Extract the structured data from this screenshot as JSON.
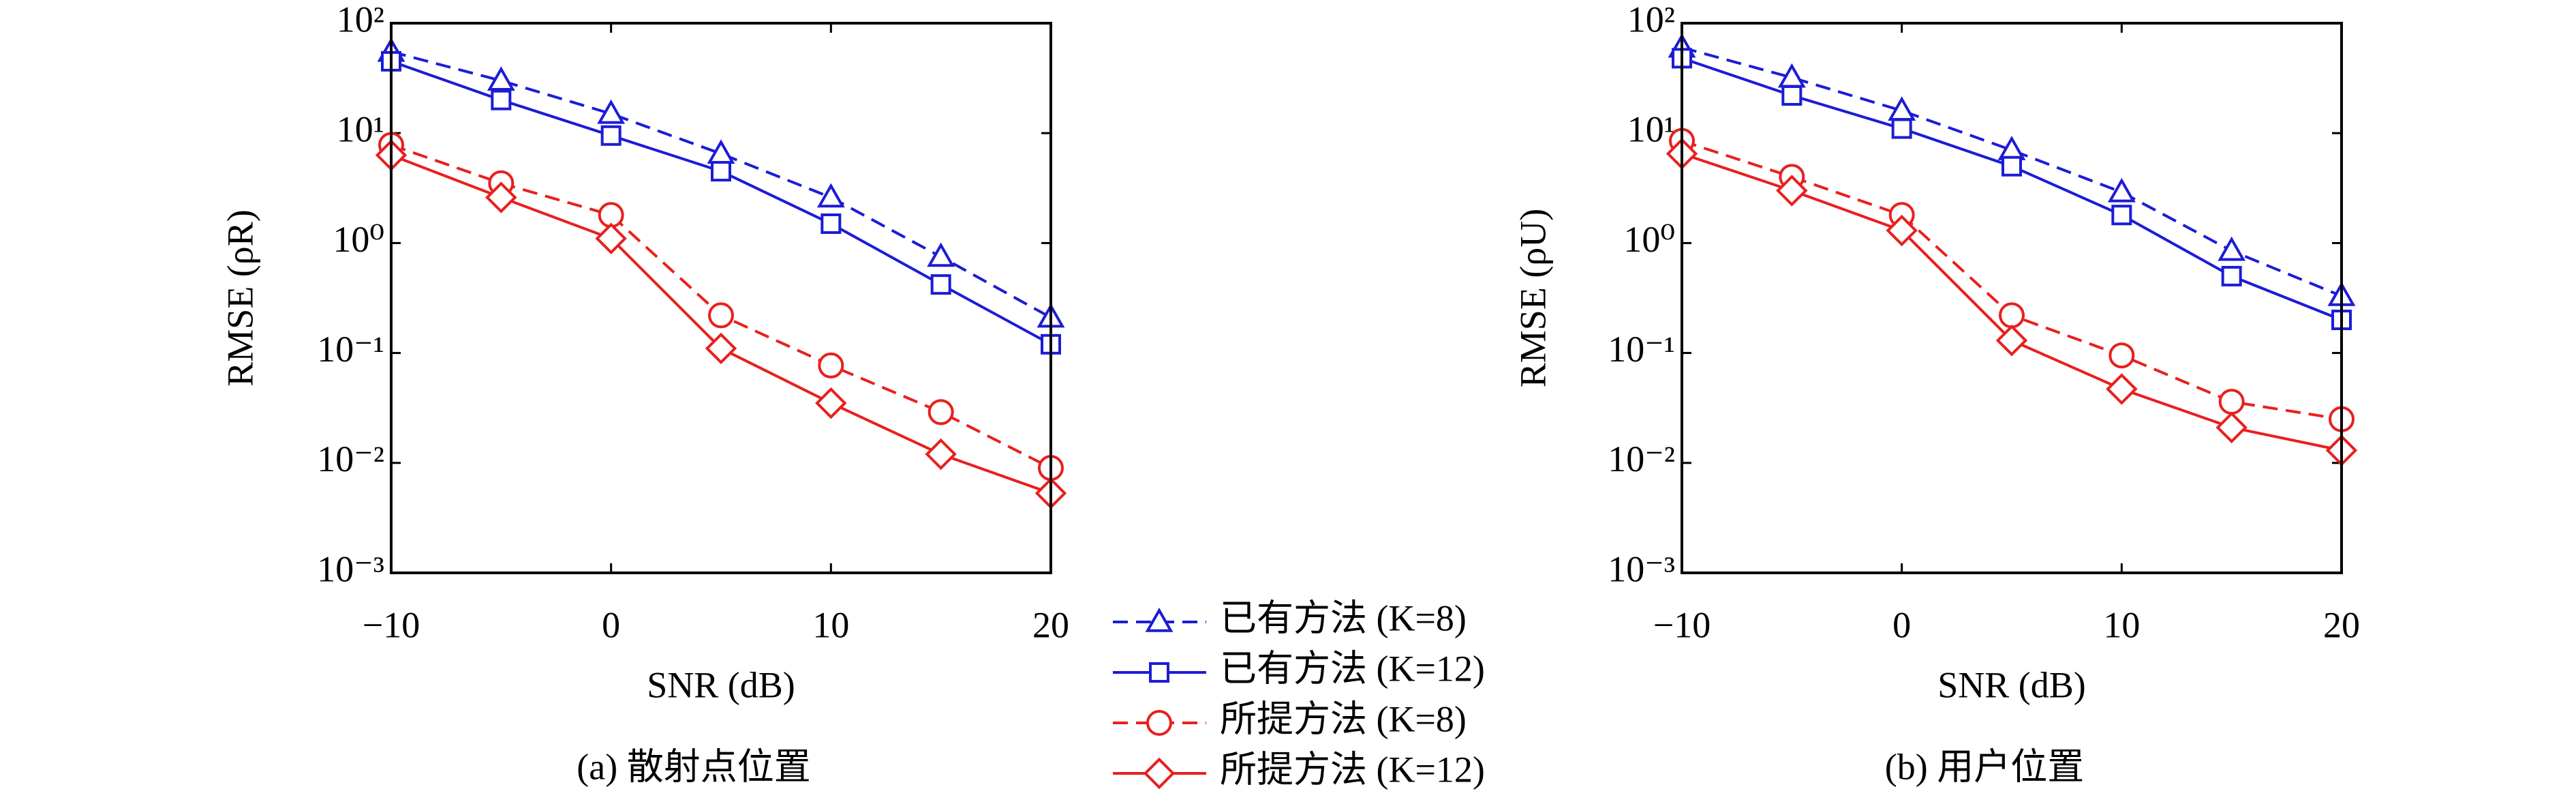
{
  "chart_data": [
    {
      "type": "line",
      "title": "(a) 散射点位置",
      "xlabel": "SNR (dB)",
      "ylabel": "RMSE (ρR)",
      "x": [
        -10,
        -5,
        0,
        5,
        10,
        15,
        20
      ],
      "xlim": [
        -10,
        20
      ],
      "xticks": [
        {
          "value": -10,
          "label": "−10"
        },
        0,
        10,
        20
      ],
      "ylim": [
        0.001,
        100
      ],
      "log_y": true,
      "yticks": [
        {
          "value": 0.001,
          "label": "10⁻³"
        },
        {
          "value": 0.01,
          "label": "10⁻²"
        },
        {
          "value": 0.1,
          "label": "10⁻¹"
        },
        {
          "value": 1,
          "label": "10⁰"
        },
        {
          "value": 10,
          "label": "10¹"
        },
        {
          "value": 100,
          "label": "10²"
        }
      ],
      "series": [
        {
          "name": "已有方法 (K=8)",
          "color": "#1c1cd6",
          "dash": true,
          "marker": "triangle",
          "values": [
            55,
            30,
            15,
            6.5,
            2.6,
            0.75,
            0.21
          ]
        },
        {
          "name": "已有方法 (K=12)",
          "color": "#1c1cd6",
          "dash": false,
          "marker": "square",
          "values": [
            45,
            20,
            9.5,
            4.5,
            1.5,
            0.42,
            0.12
          ]
        },
        {
          "name": "所提方法 (K=8)",
          "color": "#e8201e",
          "dash": true,
          "marker": "circle",
          "values": [
            7.8,
            3.5,
            1.8,
            0.22,
            0.077,
            0.029,
            0.009
          ]
        },
        {
          "name": "所提方法 (K=12)",
          "color": "#e8201e",
          "dash": false,
          "marker": "diamond",
          "values": [
            6.3,
            2.6,
            1.1,
            0.11,
            0.035,
            0.012,
            0.0053
          ]
        }
      ]
    },
    {
      "type": "line",
      "title": "(b) 用户位置",
      "xlabel": "SNR (dB)",
      "ylabel": "RMSE (ρU)",
      "x": [
        -10,
        -5,
        0,
        5,
        10,
        15,
        20
      ],
      "xlim": [
        -10,
        20
      ],
      "xticks": [
        {
          "value": -10,
          "label": "−10"
        },
        0,
        10,
        20
      ],
      "ylim": [
        0.001,
        100
      ],
      "log_y": true,
      "yticks": [
        {
          "value": 0.001,
          "label": "10⁻³"
        },
        {
          "value": 0.01,
          "label": "10⁻²"
        },
        {
          "value": 0.1,
          "label": "10⁻¹"
        },
        {
          "value": 1,
          "label": "10⁰"
        },
        {
          "value": 10,
          "label": "10¹"
        },
        {
          "value": 100,
          "label": "10²"
        }
      ],
      "series": [
        {
          "color": "#1c1cd6",
          "dash": true,
          "marker": "triangle",
          "values": [
            60,
            32,
            16,
            7,
            2.9,
            0.85,
            0.33
          ]
        },
        {
          "color": "#1c1cd6",
          "dash": false,
          "marker": "square",
          "values": [
            48,
            22,
            11,
            5,
            1.8,
            0.5,
            0.2
          ]
        },
        {
          "color": "#e8201e",
          "dash": true,
          "marker": "circle",
          "values": [
            8.5,
            4,
            1.8,
            0.22,
            0.095,
            0.036,
            0.025
          ]
        },
        {
          "color": "#e8201e",
          "dash": false,
          "marker": "diamond",
          "values": [
            6.5,
            3,
            1.3,
            0.13,
            0.047,
            0.021,
            0.013
          ]
        }
      ]
    }
  ]
}
